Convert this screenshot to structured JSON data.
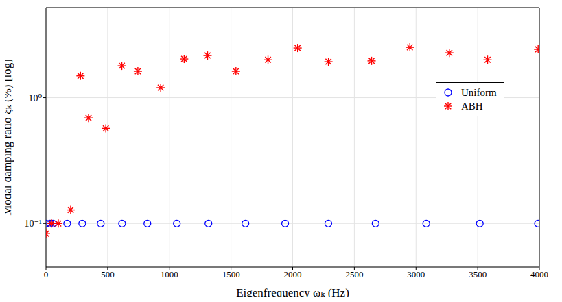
{
  "chart_data": {
    "type": "scatter",
    "x_label": "Eigenfrequency ωₖ (Hz)",
    "y_label": "Modal damping ratio ξₖ (%) [log]",
    "log": "y",
    "grid": true,
    "legend": "right",
    "xlim": [
      0,
      4000
    ],
    "xticks": [
      0,
      500,
      1000,
      1500,
      2000,
      2500,
      3000,
      3500,
      4000
    ],
    "ylim": [
      0.045,
      5.2
    ],
    "yticks": [
      {
        "value": 0.1,
        "label": "10⁻¹"
      },
      {
        "value": 1,
        "label": "10⁰"
      }
    ],
    "series": [
      {
        "name": "Uniform",
        "color": "#0000ff",
        "marker": "circle",
        "x": [
          0,
          33,
          56,
          172,
          294,
          444,
          617,
          822,
          1061,
          1317,
          1617,
          1939,
          2289,
          2672,
          3083,
          3517,
          3989
        ],
        "values": [
          0.1,
          0.1,
          0.1,
          0.1,
          0.1,
          0.1,
          0.1,
          0.1,
          0.1,
          0.1,
          0.1,
          0.1,
          0.1,
          0.1,
          0.1,
          0.1,
          0.1
        ]
      },
      {
        "name": "ABH",
        "color": "#ff0000",
        "marker": "asterisk",
        "x": [
          0,
          45,
          100,
          200,
          280,
          345,
          485,
          615,
          745,
          930,
          1120,
          1310,
          1540,
          1800,
          2040,
          2290,
          2640,
          2950,
          3270,
          3580,
          3990
        ],
        "values": [
          0.083,
          0.1,
          0.1,
          0.128,
          1.49,
          0.69,
          0.57,
          1.79,
          1.62,
          1.2,
          2.03,
          2.16,
          1.62,
          2.0,
          2.48,
          1.93,
          1.96,
          2.51,
          2.27,
          2.0,
          2.42
        ]
      }
    ]
  }
}
